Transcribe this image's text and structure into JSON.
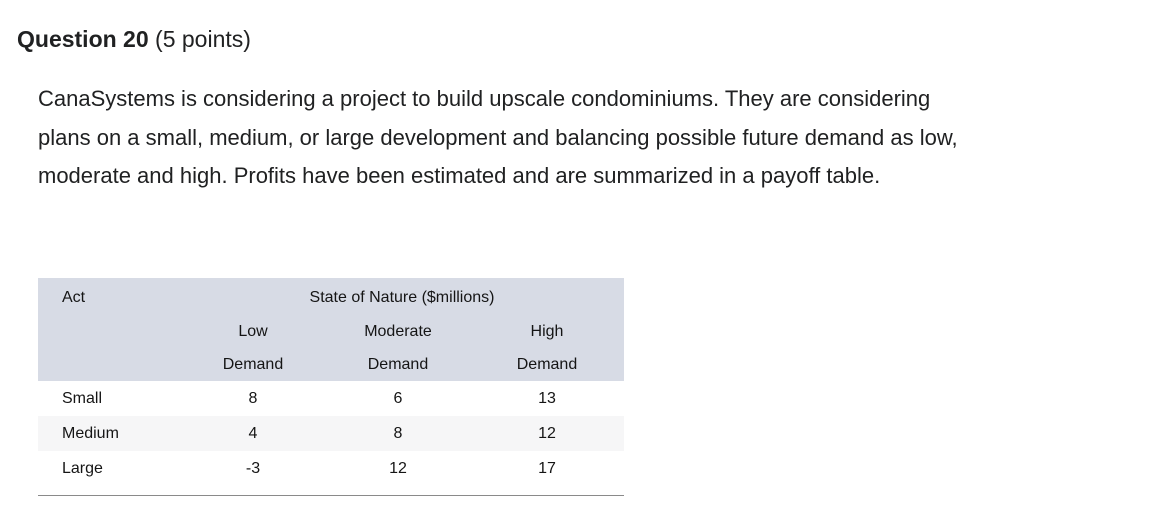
{
  "question": {
    "number_label": "Question 20",
    "points_label": "(5 points)",
    "prompt": "CanaSystems is considering a project to build upscale condominiums. They are considering plans on a small, medium, or large development and balancing possible future demand as low, moderate and high. Profits have been estimated and are summarized in a payoff table."
  },
  "payoff_table": {
    "corner_header": "Act",
    "group_header": "State of Nature ($millions)",
    "column_headers": [
      {
        "line1": "Low",
        "line2": "Demand"
      },
      {
        "line1": "Moderate",
        "line2": "Demand"
      },
      {
        "line1": "High",
        "line2": "Demand"
      }
    ],
    "rows": [
      {
        "act": "Small",
        "low": "8",
        "moderate": "6",
        "high": "13"
      },
      {
        "act": "Medium",
        "low": "4",
        "moderate": "8",
        "high": "12"
      },
      {
        "act": "Large",
        "low": "-3",
        "moderate": "12",
        "high": "17"
      }
    ],
    "colors": {
      "header_bg": "#d7dbe5",
      "alt_row_bg": "#f6f6f7",
      "bottom_border": "#8a8a8a",
      "text": "#202122"
    }
  }
}
